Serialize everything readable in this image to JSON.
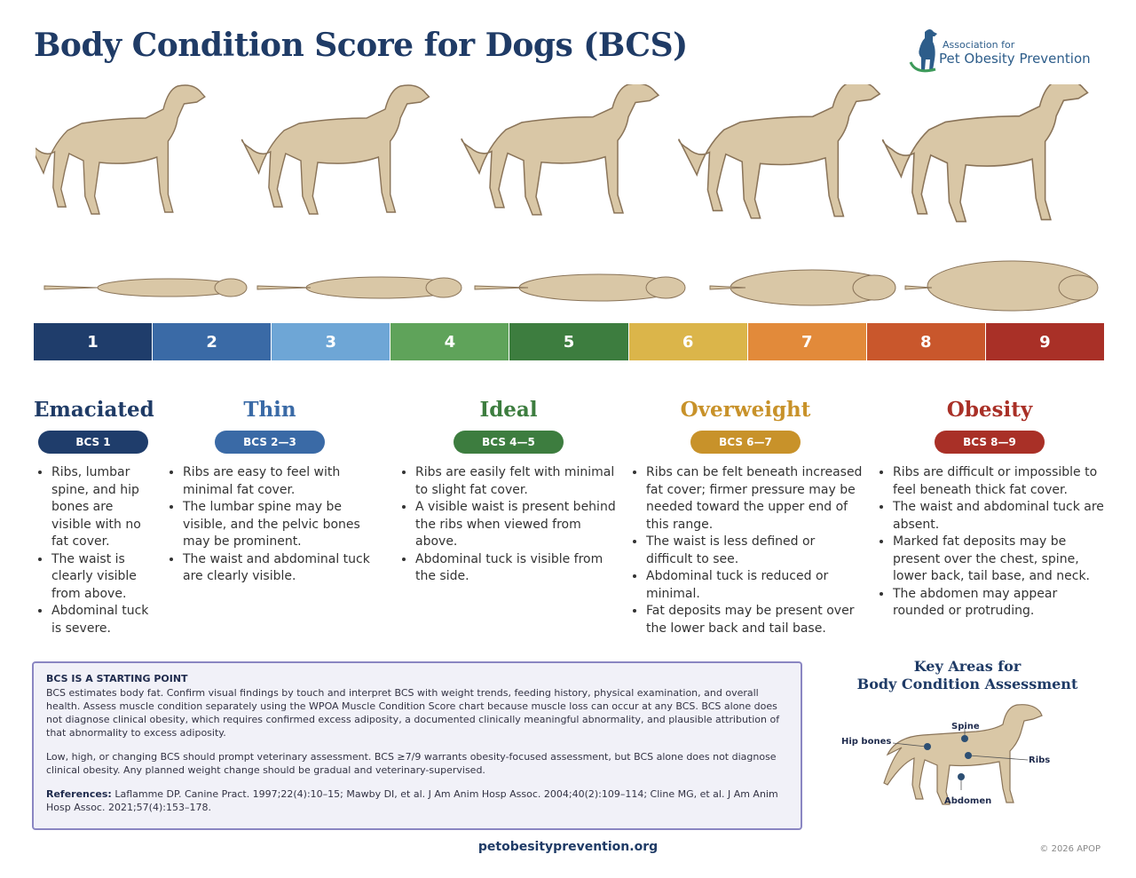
{
  "title": "Body Condition Score for Dogs (BCS)",
  "logo": {
    "line1": "Association for",
    "line2": "Pet Obesity Prevention",
    "icon": "dog-silhouette-icon"
  },
  "scale": [
    {
      "label": "1",
      "color": "#1f3d6b"
    },
    {
      "label": "2",
      "color": "#3a6aa6"
    },
    {
      "label": "3",
      "color": "#6ea6d6"
    },
    {
      "label": "4",
      "color": "#5fa35a"
    },
    {
      "label": "5",
      "color": "#3d7d3f"
    },
    {
      "label": "6",
      "color": "#dbb54a"
    },
    {
      "label": "7",
      "color": "#e28a3a"
    },
    {
      "label": "8",
      "color": "#c9572c"
    },
    {
      "label": "9",
      "color": "#a93027"
    }
  ],
  "categories": [
    {
      "name": "Emaciated",
      "badge": "BCS 1",
      "color": "#1f3b66",
      "pill": "#1f3d6b",
      "bullets": [
        "Ribs, lumbar spine, and hip bones are visible with no fat cover.",
        "The waist is clearly visible from above.",
        "Abdominal tuck is severe."
      ]
    },
    {
      "name": "Thin",
      "badge": "BCS 2—3",
      "color": "#3a6aa6",
      "pill": "#3a6aa6",
      "bullets": [
        "Ribs are easy to feel with minimal fat cover.",
        "The lumbar spine may be visible, and the pelvic bones may be prominent.",
        "The waist and abdominal tuck are clearly visible."
      ]
    },
    {
      "name": "Ideal",
      "badge": "BCS 4—5",
      "color": "#3d7d3f",
      "pill": "#3d7d3f",
      "bullets": [
        "Ribs are easily felt with minimal to slight fat cover.",
        "A visible waist is present behind the ribs when viewed from above.",
        "Abdominal tuck is visible from the side."
      ]
    },
    {
      "name": "Overweight",
      "badge": "BCS 6—7",
      "color": "#c8922a",
      "pill": "#c8922a",
      "bullets": [
        "Ribs can be felt beneath increased fat cover; firmer pressure may be needed toward the upper end of this range.",
        "The waist is less defined or difficult to see.",
        "Abdominal tuck is reduced or minimal.",
        "Fat deposits may be present over the lower back and tail base."
      ]
    },
    {
      "name": "Obesity",
      "badge": "BCS 8—9",
      "color": "#a93027",
      "pill": "#a93027",
      "bullets": [
        "Ribs are difficult or impossible to feel beneath thick fat cover.",
        "The waist and abdominal tuck are absent.",
        "Marked fat deposits may be present over the chest, spine, lower back, tail base, and neck.",
        "The abdomen may appear rounded or protruding."
      ]
    }
  ],
  "note": {
    "heading": "BCS IS A STARTING POINT",
    "para1": "BCS estimates body fat. Confirm visual findings by touch and interpret BCS with weight trends, feeding history, physical examination, and overall health. Assess muscle condition separately using the WPOA Muscle Condition Score chart because muscle loss can occur at any BCS.  BCS alone does not diagnose clinical obesity, which requires confirmed excess adiposity, a documented clinically meaningful abnormality, and plausible attribution of that abnormality to excess adiposity.",
    "para2": "Low, high, or changing BCS should prompt veterinary assessment. BCS ≥7/9 warrants obesity-focused assessment, but BCS alone does not diagnose clinical obesity. Any planned weight change should be gradual and veterinary-supervised.",
    "ref_label": "References:",
    "refs": "Laflamme DP. Canine Pract. 1997;22(4):10–15; Mawby DI, et al. J Am Anim Hosp Assoc. 2004;40(2):109–114; Cline MG, et al. J Am Anim Hosp Assoc. 2021;57(4):153–178."
  },
  "key_areas": {
    "title_line1": "Key Areas for",
    "title_line2": "Body Condition Assessment",
    "labels": {
      "hip": "Hip bones",
      "spine": "Spine",
      "ribs": "Ribs",
      "abdomen": "Abdomen"
    }
  },
  "footer": {
    "url": "petobesityprevention.org",
    "copyright": "© 2026 APOP"
  },
  "colors": {
    "dog_fill": "#d9c7a6",
    "dog_stroke": "#8a7459"
  }
}
